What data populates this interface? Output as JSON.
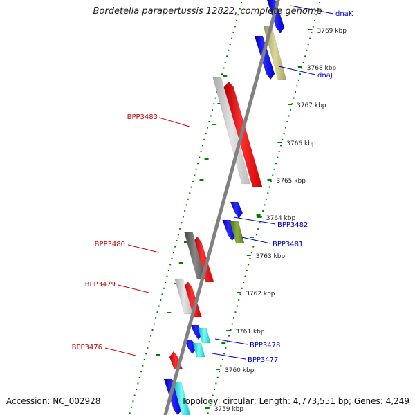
{
  "header": {
    "title": "Bordetella parapertussis 12822, complete genome"
  },
  "footer": {
    "accession": "Accession: NC_002928",
    "summary": "Topology: circular; Length: 4,773,551 bp; Genes: 4,249"
  },
  "ruler": {
    "ticks": [
      "3769 kbp",
      "3768 kbp",
      "3767 kbp",
      "3766 kbp",
      "3765 kbp",
      "3764 kbp",
      "3763 kbp",
      "3762 kbp",
      "3761 kbp",
      "3760 kbp",
      "3759 kbp"
    ]
  },
  "gene_labels": {
    "dnaK": "dnaK",
    "dnaJ": "dnaJ",
    "BPP3483": "BPP3483",
    "BPP3482": "BPP3482",
    "BPP3481": "BPP3481",
    "BPP3480": "BPP3480",
    "BPP3479": "BPP3479",
    "BPP3478": "BPP3478",
    "BPP3477": "BPP3477",
    "BPP3476": "BPP3476"
  },
  "colors": {
    "backbone": "#808080",
    "forward_cds": "#ff0000",
    "reverse_cds": "#0000ff",
    "forward_label": "#cc0000",
    "reverse_label": "#0000cc",
    "dots": "#008000",
    "gray_light": "#c8c8c8",
    "gray_dark": "#6a6a6a",
    "khaki": "#bdb76b",
    "olive": "#6b8e23",
    "cyan": "#00e5e5"
  }
}
